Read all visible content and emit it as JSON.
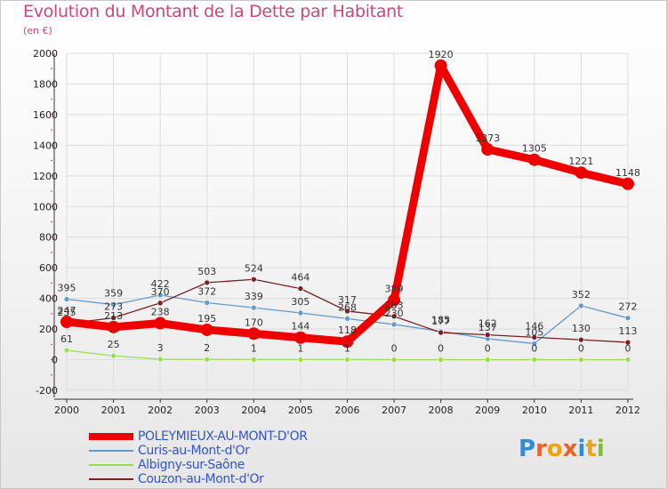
{
  "title": "Evolution du Montant de la Dette par Habitant",
  "subtitle": "(en €)",
  "colors": {
    "title": "#d0457a",
    "legend_text": "#3355cc",
    "grid": "#dddddd",
    "axis": "#333333"
  },
  "logo": {
    "text": "Proxiti",
    "letters": [
      "P",
      "r",
      "o",
      "x",
      "i",
      "t",
      "i"
    ],
    "letter_colors": [
      "#2b8fd6",
      "#e8622a",
      "#f2a20c",
      "#e8622a",
      "#2b8fd6",
      "#f2a20c",
      "#7bbf2a"
    ]
  },
  "chart_data": {
    "type": "line",
    "title": "Evolution du Montant de la Dette par Habitant",
    "subtitle": "(en €)",
    "xlabel": "",
    "ylabel": "",
    "ylim": [
      -200,
      2000
    ],
    "yticks": [
      -200,
      0,
      200,
      400,
      600,
      800,
      1000,
      1200,
      1400,
      1600,
      1800,
      2000
    ],
    "ytick_labels": [
      "-200",
      "0",
      "200",
      "400",
      "600",
      "800",
      "1000",
      "1200",
      "1400",
      "1600",
      "1800",
      "2000"
    ],
    "x": [
      2000,
      2001,
      2002,
      2003,
      2004,
      2005,
      2006,
      2007,
      2008,
      2009,
      2010,
      2011,
      2012
    ],
    "xtick_labels": [
      "2000",
      "2001",
      "2002",
      "2003",
      "2004",
      "2005",
      "2006",
      "2007",
      "2008",
      "2009",
      "2010",
      "2011",
      "2012"
    ],
    "grid": true,
    "legend_position": "bottom-left",
    "series": [
      {
        "name": "POLEYMIEUX-AU-MONT-D'OR",
        "color": "#ee0000",
        "values": [
          247,
          213,
          238,
          195,
          170,
          144,
          118,
          389,
          1920,
          1373,
          1305,
          1221,
          1148
        ],
        "labels": [
          "247",
          "213",
          "238",
          "195",
          "170",
          "144",
          "118",
          "389",
          "1920",
          "1373",
          "1305",
          "1221",
          "1148"
        ]
      },
      {
        "name": "Curis-au-Mont-d'Or",
        "color": "#6699cc",
        "values": [
          395,
          359,
          422,
          372,
          339,
          305,
          268,
          230,
          185,
          137,
          105,
          352,
          272
        ],
        "labels": [
          "395",
          "359",
          "422",
          "372",
          "339",
          "305",
          "268",
          "230",
          "185",
          "137",
          "105",
          "352",
          "272"
        ]
      },
      {
        "name": "Albigny-sur-Saône",
        "color": "#99dd55",
        "values": [
          61,
          25,
          3,
          2,
          1,
          1,
          1,
          0,
          0,
          0,
          0,
          0,
          0
        ],
        "labels": [
          "61",
          "25",
          "3",
          "2",
          "1",
          "1",
          "1",
          "0",
          "0",
          "0",
          "0",
          "0",
          "0"
        ]
      },
      {
        "name": "Couzon-au-Mont-d'Or",
        "color": "#772222",
        "values": [
          235,
          273,
          370,
          503,
          524,
          464,
          317,
          283,
          177,
          162,
          146,
          130,
          113
        ],
        "labels": [
          "235",
          "273",
          "370",
          "503",
          "524",
          "464",
          "317",
          "283",
          "177",
          "162",
          "146",
          "130",
          "113"
        ]
      }
    ]
  }
}
